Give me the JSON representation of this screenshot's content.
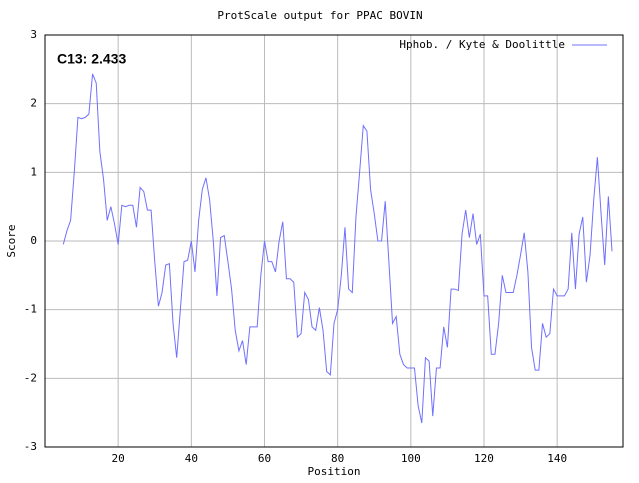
{
  "chart_data": {
    "type": "line",
    "title": "ProtScale output for PPAC BOVIN",
    "x_label": "Position",
    "y_label": "Score",
    "annotation": "C13: 2.433",
    "legend_position": "top-right",
    "grid": true,
    "xlim": [
      0,
      158
    ],
    "xticks": [
      20,
      40,
      60,
      80,
      100,
      120,
      140
    ],
    "ylim": [
      -3,
      3
    ],
    "yticks": [
      -3,
      -2,
      -1,
      0,
      1,
      2,
      3
    ],
    "x": [
      5,
      6,
      7,
      8,
      9,
      10,
      11,
      12,
      13,
      14,
      15,
      16,
      17,
      18,
      19,
      20,
      21,
      22,
      23,
      24,
      25,
      26,
      27,
      28,
      29,
      30,
      31,
      32,
      33,
      34,
      35,
      36,
      37,
      38,
      39,
      40,
      41,
      42,
      43,
      44,
      45,
      46,
      47,
      48,
      49,
      50,
      51,
      52,
      53,
      54,
      55,
      56,
      57,
      58,
      59,
      60,
      61,
      62,
      63,
      64,
      65,
      66,
      67,
      68,
      69,
      70,
      71,
      72,
      73,
      74,
      75,
      76,
      77,
      78,
      79,
      80,
      81,
      82,
      83,
      84,
      85,
      86,
      87,
      88,
      89,
      90,
      91,
      92,
      93,
      94,
      95,
      96,
      97,
      98,
      99,
      100,
      101,
      102,
      103,
      104,
      105,
      106,
      107,
      108,
      109,
      110,
      111,
      112,
      113,
      114,
      115,
      116,
      117,
      118,
      119,
      120,
      121,
      122,
      123,
      124,
      125,
      126,
      127,
      128,
      129,
      130,
      131,
      132,
      133,
      134,
      135,
      136,
      137,
      138,
      139,
      140,
      141,
      142,
      143,
      144,
      145,
      146,
      147,
      148,
      149,
      150,
      151,
      152,
      153,
      154,
      155
    ],
    "series": [
      {
        "name": "Hphob. / Kyte & Doolittle",
        "color": "#7070ff",
        "values": [
          -0.05,
          0.15,
          0.3,
          1.0,
          1.8,
          1.78,
          1.8,
          1.85,
          2.433,
          2.3,
          1.3,
          0.9,
          0.3,
          0.5,
          0.25,
          -0.05,
          0.52,
          0.5,
          0.52,
          0.52,
          0.2,
          0.78,
          0.72,
          0.45,
          0.45,
          -0.3,
          -0.95,
          -0.75,
          -0.35,
          -0.33,
          -1.2,
          -1.7,
          -1.0,
          -0.3,
          -0.28,
          0.0,
          -0.45,
          0.3,
          0.75,
          0.92,
          0.6,
          0.0,
          -0.8,
          0.05,
          0.08,
          -0.3,
          -0.7,
          -1.3,
          -1.6,
          -1.45,
          -1.8,
          -1.25,
          -1.25,
          -1.25,
          -0.5,
          0.0,
          -0.3,
          -0.3,
          -0.45,
          0.0,
          0.28,
          -0.55,
          -0.55,
          -0.6,
          -1.4,
          -1.35,
          -0.75,
          -0.85,
          -1.25,
          -1.3,
          -0.97,
          -1.3,
          -1.9,
          -1.95,
          -1.2,
          -1.0,
          -0.5,
          0.2,
          -0.7,
          -0.75,
          0.35,
          1.0,
          1.68,
          1.6,
          0.75,
          0.4,
          0.0,
          0.0,
          0.58,
          -0.3,
          -1.2,
          -1.1,
          -1.65,
          -1.8,
          -1.85,
          -1.85,
          -1.85,
          -2.4,
          -2.65,
          -1.7,
          -1.75,
          -2.55,
          -1.85,
          -1.85,
          -1.25,
          -1.55,
          -0.7,
          -0.7,
          -0.72,
          0.1,
          0.45,
          0.05,
          0.4,
          -0.05,
          0.1,
          -0.8,
          -0.8,
          -1.65,
          -1.65,
          -1.2,
          -0.5,
          -0.75,
          -0.75,
          -0.75,
          -0.5,
          -0.2,
          0.12,
          -0.45,
          -1.55,
          -1.88,
          -1.88,
          -1.2,
          -1.4,
          -1.35,
          -0.7,
          -0.8,
          -0.8,
          -0.8,
          -0.7,
          0.12,
          -0.7,
          0.1,
          0.35,
          -0.6,
          -0.2,
          0.6,
          1.22,
          0.4,
          -0.35,
          0.65,
          -0.15
        ]
      }
    ]
  }
}
